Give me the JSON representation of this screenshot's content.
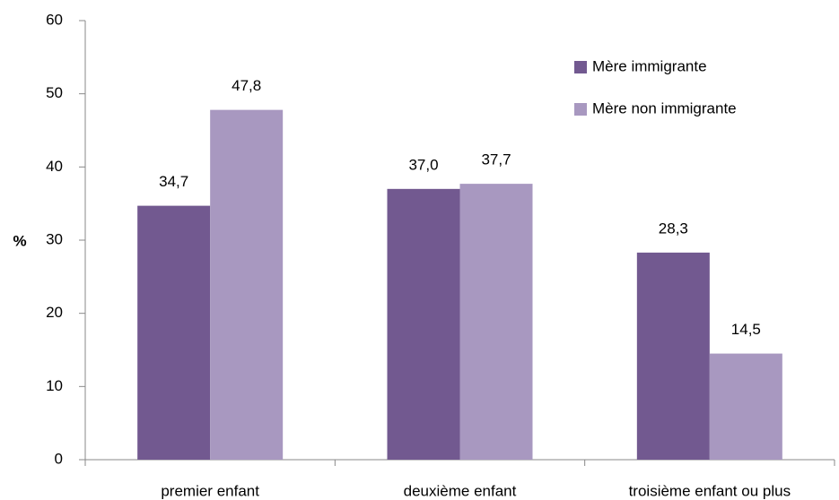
{
  "chart_data": {
    "type": "bar",
    "y_label": "%",
    "categories": [
      "premier enfant",
      "deuxième enfant",
      "troisième enfant ou plus"
    ],
    "series": [
      {
        "name": "Mère immigrante",
        "color": "#725990",
        "values": [
          34.7,
          37.0,
          28.3
        ],
        "value_labels": [
          "34,7",
          "37,0",
          "28,3"
        ]
      },
      {
        "name": "Mère non immigrante",
        "color": "#a898c0",
        "values": [
          47.8,
          37.7,
          14.5
        ],
        "value_labels": [
          "47,8",
          "37,7",
          "14,5"
        ]
      }
    ],
    "ylim": [
      0,
      60
    ],
    "yticks": [
      0,
      10,
      20,
      30,
      40,
      50,
      60
    ],
    "grid": false,
    "legend": "upper right"
  }
}
